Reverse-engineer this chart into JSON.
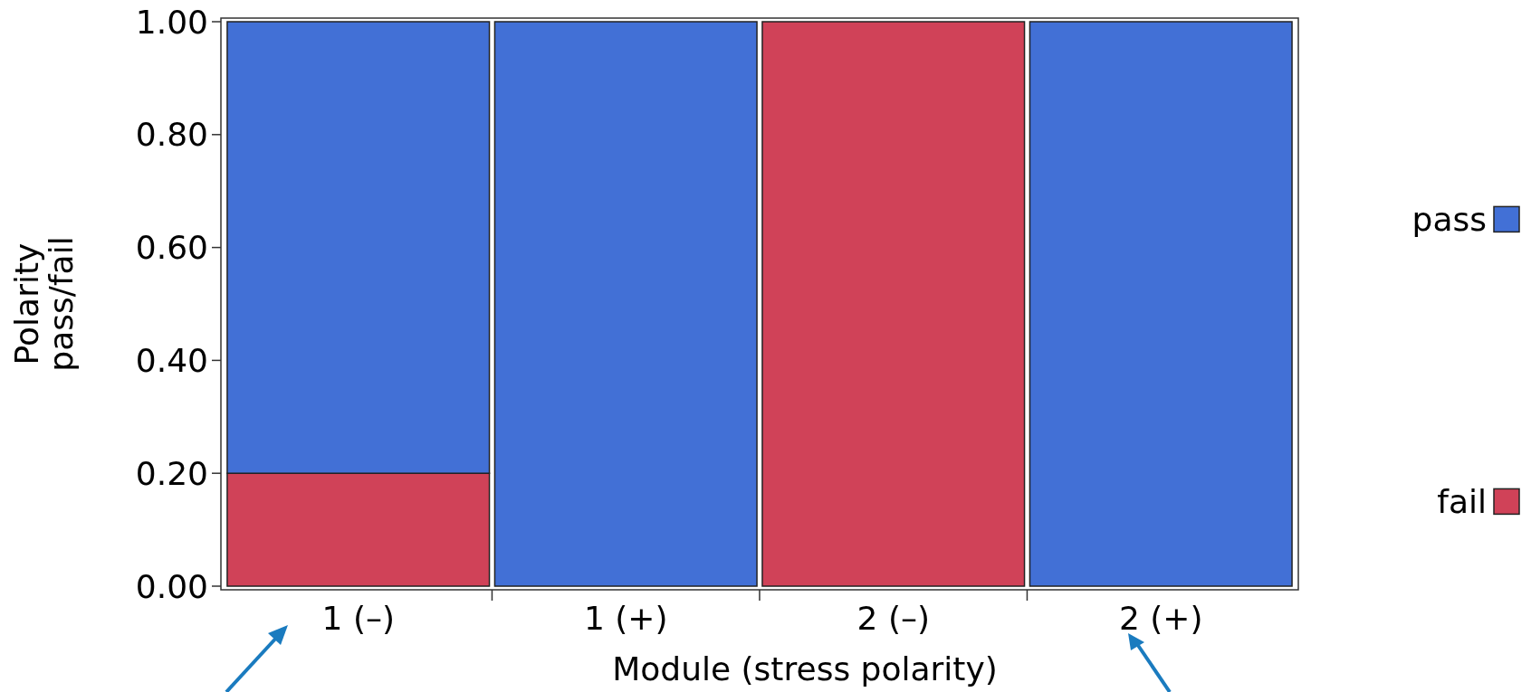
{
  "chart_data": {
    "type": "bar",
    "stacked": true,
    "xlabel": "Module (stress polarity)",
    "ylabel": "Polarity pass/fail",
    "categories": [
      "1 (–)",
      "1 (+)",
      "2 (–)",
      "2 (+)"
    ],
    "series": [
      {
        "name": "fail",
        "color": "#d04258",
        "values": [
          0.2,
          0,
          1,
          0
        ]
      },
      {
        "name": "pass",
        "color": "#4270d6",
        "values": [
          0.8,
          1,
          0,
          1
        ]
      }
    ],
    "ylim": [
      0,
      1
    ],
    "yticks": [
      {
        "value": 0,
        "label": "0.00"
      },
      {
        "value": 0.2,
        "label": "0.20"
      },
      {
        "value": 0.4,
        "label": "0.40"
      },
      {
        "value": 0.6,
        "label": "0.60"
      },
      {
        "value": 0.8,
        "label": "0.80"
      },
      {
        "value": 1,
        "label": "1.00"
      }
    ],
    "legend": "right",
    "grid": false
  }
}
